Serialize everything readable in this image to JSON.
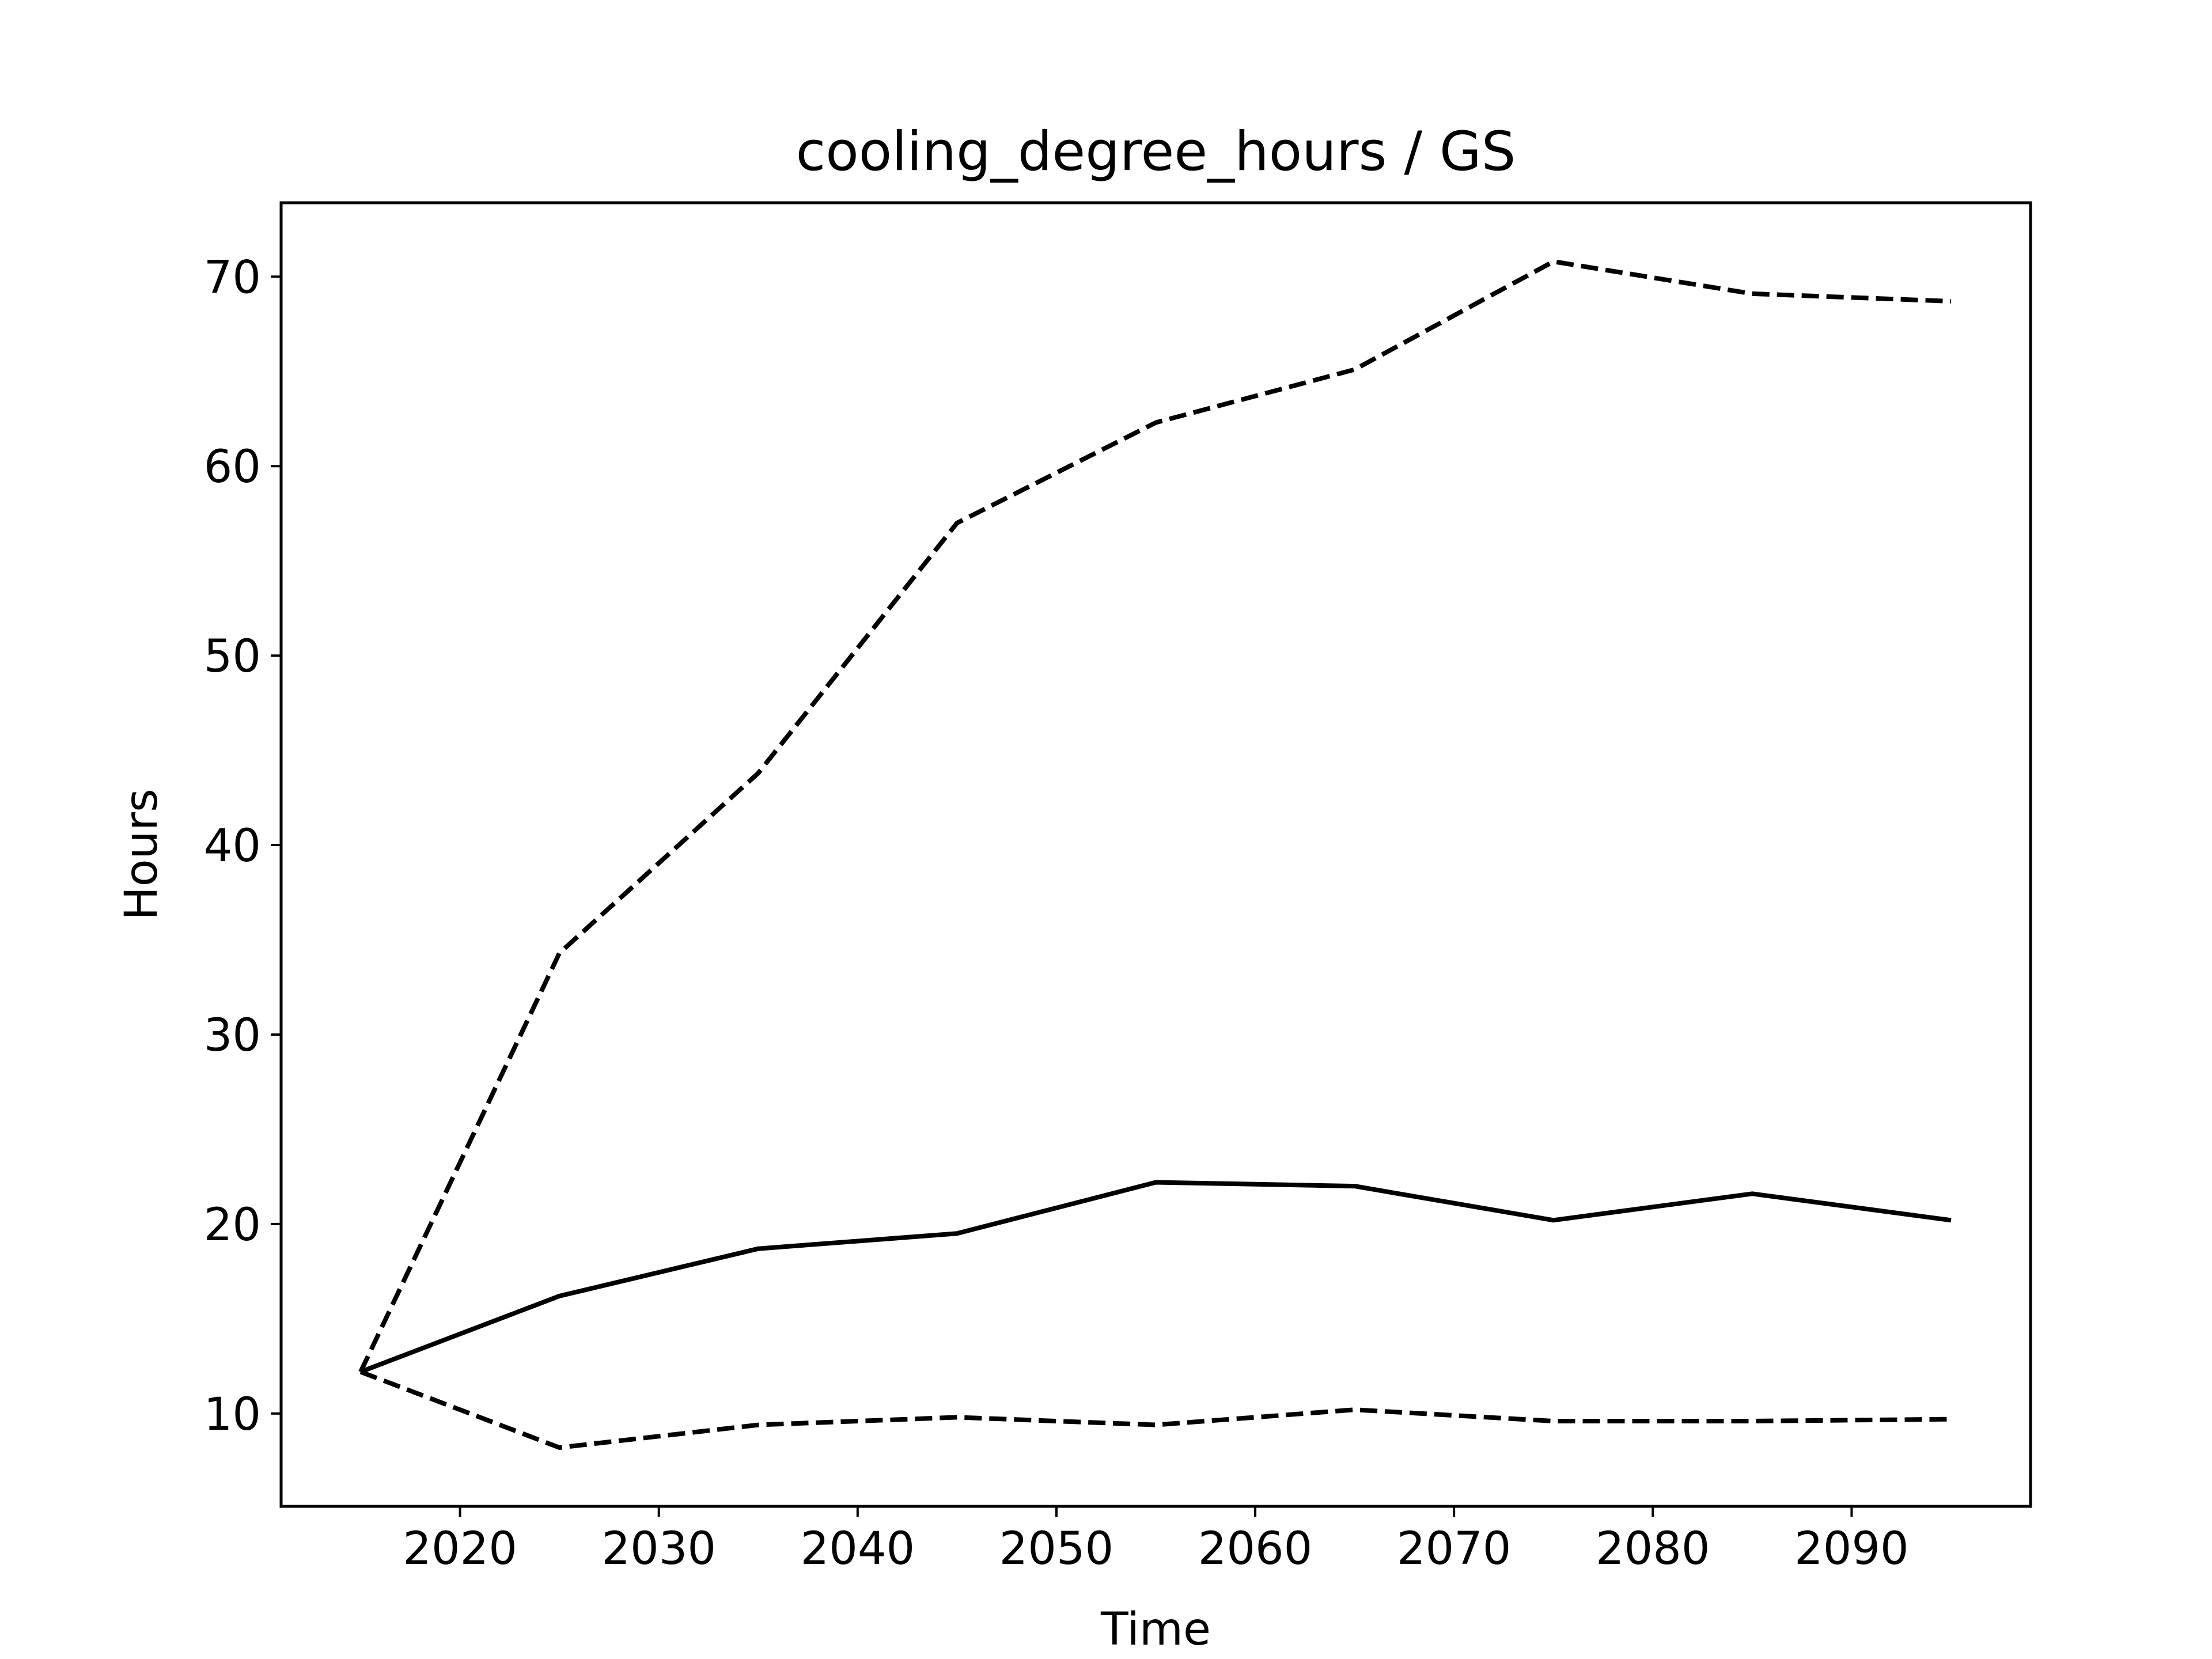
{
  "chart_data": {
    "type": "line",
    "title": "cooling_degree_hours / GS",
    "xlabel": "Time",
    "ylabel": "Hours",
    "xlim": [
      2011,
      2099
    ],
    "ylim": [
      5.1,
      73.9
    ],
    "xticks": [
      2020,
      2030,
      2040,
      2050,
      2060,
      2070,
      2080,
      2090
    ],
    "yticks": [
      10,
      20,
      30,
      40,
      50,
      60,
      70
    ],
    "grid": false,
    "x": [
      2015,
      2025,
      2035,
      2045,
      2055,
      2065,
      2075,
      2085,
      2095
    ],
    "series": [
      {
        "style": "dashed",
        "color": "#000000",
        "values": [
          12.2,
          34.3,
          43.8,
          57.0,
          62.3,
          65.1,
          70.8,
          69.1,
          68.7
        ]
      },
      {
        "style": "solid",
        "color": "#000000",
        "values": [
          12.2,
          16.2,
          18.7,
          19.5,
          22.2,
          22.0,
          20.2,
          21.6,
          20.2
        ]
      },
      {
        "style": "dashed",
        "color": "#000000",
        "values": [
          12.2,
          8.2,
          9.4,
          9.8,
          9.4,
          10.2,
          9.6,
          9.6,
          9.7
        ]
      }
    ]
  }
}
